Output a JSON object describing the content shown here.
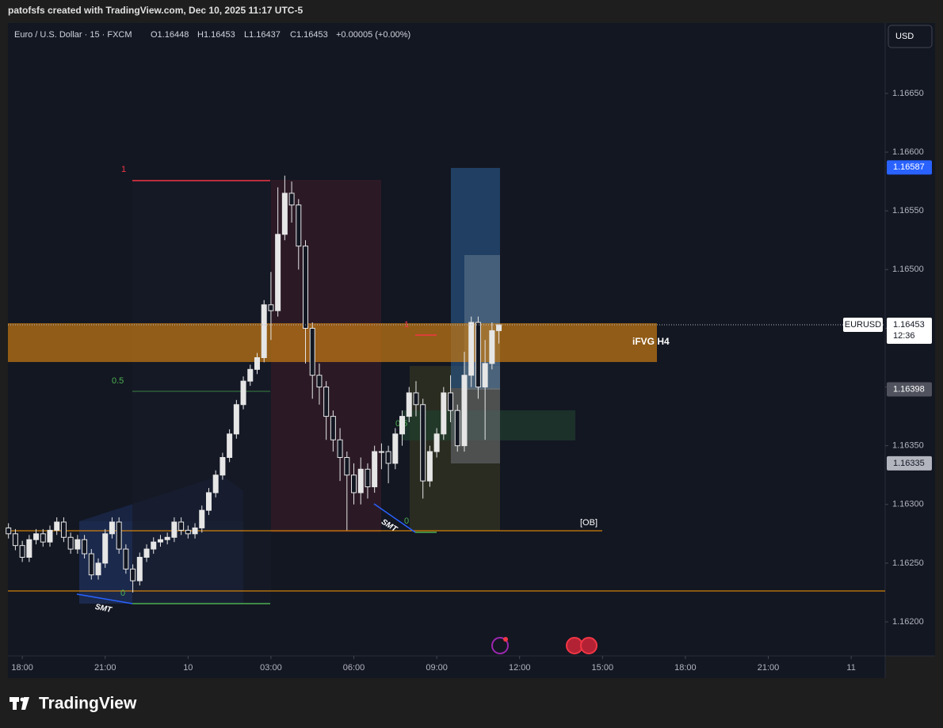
{
  "header": {
    "title": "patofsfs created with TradingView.com, Dec 10, 2025 11:17 UTC-5"
  },
  "footer": {
    "brand": "TradingView"
  },
  "currency_button": "USD",
  "legend": {
    "symbol": "Euro / U.S. Dollar · 15 · FXCM",
    "open": "O1.16448",
    "high": "H1.16453",
    "low": "L1.16437",
    "close": "C1.16453",
    "change": "+0.00005 (+0.00%)"
  },
  "annotations": {
    "zone": "iFVG H4",
    "ob": "[OB]",
    "smt_1": "SMT",
    "smt_2": "SMT",
    "fib_1_top": "1",
    "fib_1_mid": "0.5",
    "fib_1_bottom": "0",
    "fib_2_top": "1",
    "fib_2_mid": "0.5",
    "fib_2_bottom": "0"
  },
  "chart_data": {
    "type": "candlestick",
    "up_color": "#e6e6e6",
    "down_color": "#131722",
    "grid": false,
    "x": [
      -0.5,
      -0.25,
      0,
      0.25,
      0.5,
      0.75,
      1,
      1.25,
      1.5,
      1.75,
      2,
      2.25,
      2.5,
      2.75,
      3,
      3.25,
      3.5,
      3.75,
      4,
      4.25,
      4.5,
      4.75,
      5,
      5.25,
      5.5,
      5.75,
      6,
      6.25,
      6.5,
      6.75,
      7,
      7.25,
      7.5,
      7.75,
      8,
      8.25,
      8.5,
      8.75,
      9,
      9.25,
      9.5,
      9.75,
      10,
      10.25,
      10.5,
      10.75,
      11,
      11.25,
      11.5,
      11.75,
      12,
      12.25,
      12.5,
      12.75,
      13,
      13.25,
      13.5,
      13.75,
      14,
      14.25,
      14.5,
      14.75,
      15,
      15.25,
      15.5,
      15.75,
      16,
      16.25,
      16.5,
      16.75,
      17,
      17.25
    ],
    "open": [
      1.1628,
      1.16275,
      1.16265,
      1.16255,
      1.1627,
      1.16275,
      1.16268,
      1.16278,
      1.16285,
      1.16272,
      1.16262,
      1.1627,
      1.16258,
      1.1624,
      1.1625,
      1.16275,
      1.16285,
      1.16262,
      1.16245,
      1.16235,
      1.16255,
      1.16262,
      1.16268,
      1.1627,
      1.16272,
      1.16285,
      1.16278,
      1.16275,
      1.1628,
      1.16295,
      1.1631,
      1.16325,
      1.1634,
      1.1636,
      1.16385,
      1.16405,
      1.16415,
      1.16425,
      1.1647,
      1.16465,
      1.1653,
      1.16565,
      1.16555,
      1.1652,
      1.1645,
      1.1641,
      1.164,
      1.16375,
      1.16355,
      1.1634,
      1.16325,
      1.1631,
      1.1633,
      1.16315,
      1.16345,
      1.16345,
      1.16335,
      1.1636,
      1.16375,
      1.16395,
      1.16385,
      1.1632,
      1.16345,
      1.1636,
      1.16395,
      1.1638,
      1.1635,
      1.1641,
      1.16455,
      1.164,
      1.1642,
      1.16448
    ],
    "high": [
      1.16284,
      1.16279,
      1.16269,
      1.16274,
      1.16279,
      1.16279,
      1.16282,
      1.16289,
      1.16289,
      1.16276,
      1.16274,
      1.16274,
      1.16262,
      1.16254,
      1.16279,
      1.16289,
      1.16289,
      1.16266,
      1.16249,
      1.16259,
      1.16266,
      1.16272,
      1.16274,
      1.16276,
      1.16289,
      1.16289,
      1.16282,
      1.16284,
      1.16299,
      1.16314,
      1.16329,
      1.16344,
      1.16364,
      1.16389,
      1.16409,
      1.16419,
      1.16429,
      1.16474,
      1.16498,
      1.1657,
      1.1658,
      1.16575,
      1.1656,
      1.16525,
      1.16455,
      1.1642,
      1.16405,
      1.1638,
      1.16365,
      1.16345,
      1.16335,
      1.1634,
      1.16335,
      1.1635,
      1.16352,
      1.1635,
      1.16365,
      1.1638,
      1.164,
      1.16405,
      1.1639,
      1.1635,
      1.16365,
      1.164,
      1.1641,
      1.16385,
      1.1643,
      1.1646,
      1.1646,
      1.1644,
      1.16455,
      1.16453
    ],
    "low": [
      1.16271,
      1.16261,
      1.16251,
      1.16251,
      1.16266,
      1.16264,
      1.16264,
      1.16274,
      1.16268,
      1.16258,
      1.16258,
      1.16254,
      1.16236,
      1.16236,
      1.16246,
      1.16271,
      1.16258,
      1.16241,
      1.16225,
      1.16231,
      1.16251,
      1.16258,
      1.16264,
      1.16266,
      1.16268,
      1.16274,
      1.16271,
      1.16271,
      1.16276,
      1.16291,
      1.16306,
      1.16321,
      1.16336,
      1.16356,
      1.16381,
      1.16401,
      1.16411,
      1.16421,
      1.1644,
      1.1646,
      1.16525,
      1.1654,
      1.165,
      1.1642,
      1.1639,
      1.16385,
      1.16355,
      1.16345,
      1.1632,
      1.16278,
      1.163,
      1.163,
      1.16305,
      1.1631,
      1.1633,
      1.16318,
      1.1633,
      1.1635,
      1.1637,
      1.16375,
      1.16305,
      1.16315,
      1.1634,
      1.16355,
      1.1637,
      1.16345,
      1.16345,
      1.164,
      1.1639,
      1.16355,
      1.16415,
      1.16437
    ],
    "close": [
      1.16275,
      1.16265,
      1.16255,
      1.1627,
      1.16275,
      1.16268,
      1.16278,
      1.16285,
      1.16272,
      1.16262,
      1.1627,
      1.16258,
      1.1624,
      1.1625,
      1.16275,
      1.16285,
      1.16262,
      1.16245,
      1.16235,
      1.16255,
      1.16262,
      1.16268,
      1.1627,
      1.16272,
      1.16285,
      1.16278,
      1.16275,
      1.1628,
      1.16295,
      1.1631,
      1.16325,
      1.1634,
      1.1636,
      1.16385,
      1.16405,
      1.16415,
      1.16425,
      1.1647,
      1.16465,
      1.1653,
      1.16565,
      1.16555,
      1.1652,
      1.1645,
      1.1641,
      1.164,
      1.16375,
      1.16355,
      1.1634,
      1.16325,
      1.1631,
      1.1633,
      1.16315,
      1.16345,
      1.16345,
      1.16335,
      1.1636,
      1.16375,
      1.16395,
      1.16385,
      1.1632,
      1.16345,
      1.1636,
      1.16395,
      1.1638,
      1.1635,
      1.1641,
      1.16455,
      1.164,
      1.1642,
      1.16448,
      1.16453
    ],
    "xlim": [
      -0.52,
      31.23
    ],
    "ylim": [
      1.16171,
      1.1671
    ],
    "xticks": [
      {
        "value": 0,
        "label": "18:00"
      },
      {
        "value": 3,
        "label": "21:00"
      },
      {
        "value": 6,
        "label": "10"
      },
      {
        "value": 9,
        "label": "03:00"
      },
      {
        "value": 12,
        "label": "06:00"
      },
      {
        "value": 15,
        "label": "09:00"
      },
      {
        "value": 18,
        "label": "12:00"
      },
      {
        "value": 21,
        "label": "15:00"
      },
      {
        "value": 24,
        "label": "18:00"
      },
      {
        "value": 27,
        "label": "21:00"
      },
      {
        "value": 30,
        "label": "11"
      }
    ],
    "yticks": [
      {
        "value": 1.162,
        "label": "1.16200"
      },
      {
        "value": 1.1625,
        "label": "1.16250"
      },
      {
        "value": 1.163,
        "label": "1.16300"
      },
      {
        "value": 1.1635,
        "label": "1.16350"
      },
      {
        "value": 1.164,
        "label": "1.16400"
      },
      {
        "value": 1.1645,
        "label": "1.16450"
      },
      {
        "value": 1.165,
        "label": "1.16500"
      },
      {
        "value": 1.1655,
        "label": "1.16550"
      },
      {
        "value": 1.166,
        "label": "1.16600"
      },
      {
        "value": 1.1665,
        "label": "1.16650"
      }
    ],
    "price_tags": [
      {
        "value": 1.16587,
        "color": "#2962ff",
        "text_color": "#ffffff"
      },
      {
        "value": 1.16398,
        "color": "#50535e",
        "text_color": "#ffffff"
      },
      {
        "value": 1.16335,
        "color": "#b2b5be",
        "text_color": "#131722"
      }
    ],
    "last_price": {
      "value": 1.16453,
      "symbol": "EURUSD",
      "countdown": "12:36"
    }
  }
}
